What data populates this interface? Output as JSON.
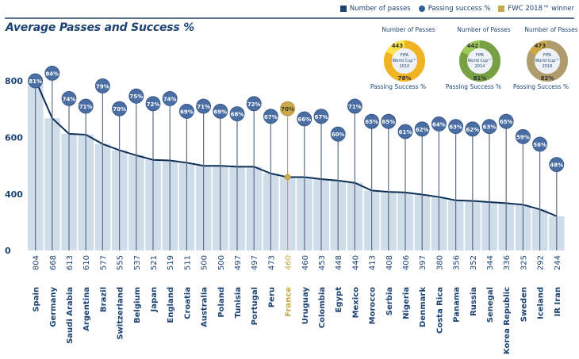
{
  "legend": {
    "items": [
      {
        "label": "Number of passes",
        "color": "#1d4373",
        "shape": "square"
      },
      {
        "label": "Passing success %",
        "color": "#2f5c96",
        "shape": "circle"
      },
      {
        "label": "FWC 2018™ winner",
        "color": "#c9a84c",
        "shape": "square"
      }
    ]
  },
  "colors": {
    "primary": "#1d4373",
    "bubble": "#4a6ea3",
    "winner": "#c9a84c",
    "bar_fill": "#cfdce9"
  },
  "chart_data": {
    "type": "bar",
    "title": "Average Passes and Success %",
    "xlabel": "",
    "ylabel": "",
    "ylim": [
      0,
      900
    ],
    "yticks": [
      0,
      400,
      600,
      800
    ],
    "highlight": "France",
    "categories": [
      "Spain",
      "Germany",
      "Saudi Arabia",
      "Argentina",
      "Brazil",
      "Switzerland",
      "Belgium",
      "Japan",
      "England",
      "Croatia",
      "Australia",
      "Poland",
      "Tunisia",
      "Portugal",
      "Peru",
      "France",
      "Uruguay",
      "Colombia",
      "Egypt",
      "Mexico",
      "Morocco",
      "Serbia",
      "Nigeria",
      "Denmark",
      "Costa Rica",
      "Panama",
      "Russia",
      "Senegal",
      "Korea Republic",
      "Sweden",
      "Iceland",
      "IR Iran"
    ],
    "series": [
      {
        "name": "Number of passes",
        "values": [
          804,
          668,
          613,
          610,
          577,
          555,
          537,
          521,
          519,
          511,
          500,
          500,
          497,
          497,
          473,
          460,
          460,
          453,
          448,
          440,
          413,
          408,
          406,
          397,
          380,
          356,
          352,
          344,
          336,
          325,
          292,
          244
        ]
      },
      {
        "name": "Passing success %",
        "values": [
          81,
          84,
          74,
          71,
          79,
          70,
          75,
          72,
          74,
          69,
          71,
          69,
          68,
          72,
          67,
          70,
          66,
          67,
          60,
          71,
          65,
          65,
          61,
          62,
          64,
          63,
          62,
          63,
          65,
          59,
          56,
          48
        ]
      }
    ],
    "value_labels": [
      "804",
      "668",
      "613",
      "610",
      "577",
      "555",
      "537",
      "521",
      "519",
      "511",
      "500",
      "500",
      "497",
      "497",
      "473",
      "460",
      "460",
      "453",
      "448",
      "440",
      "413",
      "408",
      "406",
      "397",
      "380",
      "356",
      "352",
      "344",
      "336",
      "325",
      "292",
      "244"
    ],
    "percent_labels": [
      "81%",
      "84%",
      "74%",
      "71%",
      "79%",
      "70%",
      "75%",
      "72%",
      "74%",
      "69%",
      "71%",
      "69%",
      "68%",
      "72%",
      "67%",
      "70%",
      "66%",
      "67%",
      "60%",
      "71%",
      "65%",
      "65%",
      "61%",
      "62%",
      "64%",
      "63%",
      "62%",
      "63%",
      "65%",
      "59%",
      "56%",
      "48%"
    ],
    "inset_donuts": [
      {
        "top_label": "Number of Passes",
        "passes": "443",
        "center_lines": [
          "FIFA",
          "World Cup™",
          "2010"
        ],
        "success": "78%",
        "success_value": 78,
        "bottom_label": "Passing Success %",
        "ring_color": "#f0b323",
        "segment_color": "#fde34a"
      },
      {
        "top_label": "Number of Passes",
        "passes": "442",
        "center_lines": [
          "FIFA",
          "World Cup™",
          "2014"
        ],
        "success": "81%",
        "success_value": 81,
        "bottom_label": "Passing Success %",
        "ring_color": "#77a043",
        "segment_color": "#9cc95a"
      },
      {
        "top_label": "Number of Passes",
        "passes": "473",
        "center_lines": [
          "FIFA",
          "World Cup™",
          "2018"
        ],
        "success": "82%",
        "success_value": 82,
        "bottom_label": "Passing Success %",
        "ring_color": "#b09b6e",
        "segment_color": "#c9a84c"
      }
    ]
  }
}
